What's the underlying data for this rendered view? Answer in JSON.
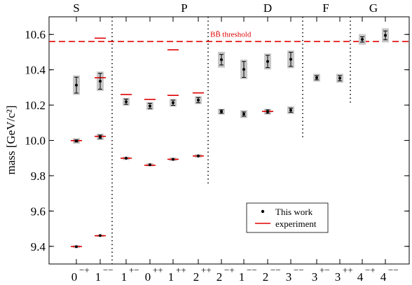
{
  "chart_data": {
    "type": "scatter",
    "ylabel": "mass  [GeV/c²]",
    "ylim": [
      9.3,
      10.7
    ],
    "yticks": [
      9.4,
      9.6,
      9.8,
      10.0,
      10.2,
      10.4,
      10.6
    ],
    "ytick_labels": [
      "9.4",
      "9.6",
      "9.8",
      "10.0",
      "10.2",
      "10.4",
      "10.6"
    ],
    "grid": false,
    "legend_position": "bottom-right",
    "legend": {
      "this_work": "This work",
      "experiment": "experiment"
    },
    "waves": [
      "S",
      "P",
      "D",
      "F",
      "G"
    ],
    "threshold": {
      "value": 10.56,
      "label": "BB̄ threshold"
    },
    "states": [
      {
        "label": "0",
        "sup": "−+"
      },
      {
        "label": "1",
        "sup": "−−"
      },
      {
        "label": "1",
        "sup": "+−"
      },
      {
        "label": "0",
        "sup": "++"
      },
      {
        "label": "1",
        "sup": "++"
      },
      {
        "label": "2",
        "sup": "++"
      },
      {
        "label": "2",
        "sup": "−+"
      },
      {
        "label": "1",
        "sup": "−−"
      },
      {
        "label": "2",
        "sup": "−−"
      },
      {
        "label": "3",
        "sup": "−−"
      },
      {
        "label": "3",
        "sup": "+−"
      },
      {
        "label": "3",
        "sup": "++"
      },
      {
        "label": "4",
        "sup": "−+"
      },
      {
        "label": "4",
        "sup": "−−"
      }
    ],
    "series": [
      {
        "name": "This work",
        "points": [
          {
            "state": 0,
            "y": 9.398,
            "err": 0.004,
            "sys": 0.008
          },
          {
            "state": 0,
            "y": 9.997,
            "err": 0.006,
            "sys": 0.016
          },
          {
            "state": 0,
            "y": 10.313,
            "err": 0.045,
            "sys": 0.055
          },
          {
            "state": 1,
            "y": 9.461,
            "err": 0.003,
            "sys": 0.005
          },
          {
            "state": 1,
            "y": 10.02,
            "err": 0.01,
            "sys": 0.018
          },
          {
            "state": 1,
            "y": 10.335,
            "err": 0.045,
            "sys": 0.055
          },
          {
            "state": 2,
            "y": 9.899,
            "err": 0.005,
            "sys": 0.01
          },
          {
            "state": 2,
            "y": 10.219,
            "err": 0.015,
            "sys": 0.022
          },
          {
            "state": 3,
            "y": 9.862,
            "err": 0.004,
            "sys": 0.009
          },
          {
            "state": 3,
            "y": 10.195,
            "err": 0.015,
            "sys": 0.022
          },
          {
            "state": 4,
            "y": 9.893,
            "err": 0.005,
            "sys": 0.01
          },
          {
            "state": 4,
            "y": 10.213,
            "err": 0.015,
            "sys": 0.022
          },
          {
            "state": 5,
            "y": 9.912,
            "err": 0.005,
            "sys": 0.01
          },
          {
            "state": 5,
            "y": 10.228,
            "err": 0.015,
            "sys": 0.022
          },
          {
            "state": 6,
            "y": 10.163,
            "err": 0.01,
            "sys": 0.016
          },
          {
            "state": 6,
            "y": 10.457,
            "err": 0.03,
            "sys": 0.045
          },
          {
            "state": 7,
            "y": 10.149,
            "err": 0.012,
            "sys": 0.022
          },
          {
            "state": 7,
            "y": 10.402,
            "err": 0.045,
            "sys": 0.055
          },
          {
            "state": 8,
            "y": 10.163,
            "err": 0.01,
            "sys": 0.016
          },
          {
            "state": 8,
            "y": 10.447,
            "err": 0.035,
            "sys": 0.045
          },
          {
            "state": 9,
            "y": 10.171,
            "err": 0.012,
            "sys": 0.022
          },
          {
            "state": 9,
            "y": 10.459,
            "err": 0.04,
            "sys": 0.05
          },
          {
            "state": 10,
            "y": 10.355,
            "err": 0.012,
            "sys": 0.022
          },
          {
            "state": 11,
            "y": 10.352,
            "err": 0.015,
            "sys": 0.025
          },
          {
            "state": 12,
            "y": 10.572,
            "err": 0.015,
            "sys": 0.03
          },
          {
            "state": 13,
            "y": 10.595,
            "err": 0.025,
            "sys": 0.04
          }
        ]
      },
      {
        "name": "experiment",
        "points": [
          {
            "state": 0,
            "y": 9.399
          },
          {
            "state": 0,
            "y": 9.999
          },
          {
            "state": 1,
            "y": 9.46
          },
          {
            "state": 1,
            "y": 10.023
          },
          {
            "state": 1,
            "y": 10.355
          },
          {
            "state": 1,
            "y": 10.579
          },
          {
            "state": 2,
            "y": 9.899
          },
          {
            "state": 2,
            "y": 10.26
          },
          {
            "state": 3,
            "y": 9.859
          },
          {
            "state": 3,
            "y": 10.232
          },
          {
            "state": 4,
            "y": 9.893
          },
          {
            "state": 4,
            "y": 10.255
          },
          {
            "state": 4,
            "y": 10.513
          },
          {
            "state": 5,
            "y": 9.912
          },
          {
            "state": 5,
            "y": 10.269
          },
          {
            "state": 8,
            "y": 10.164
          }
        ]
      }
    ],
    "colors": {
      "points": "#000000",
      "experiment": "#e00000",
      "threshold": "#e00000",
      "band": "#c8c8c8"
    }
  }
}
